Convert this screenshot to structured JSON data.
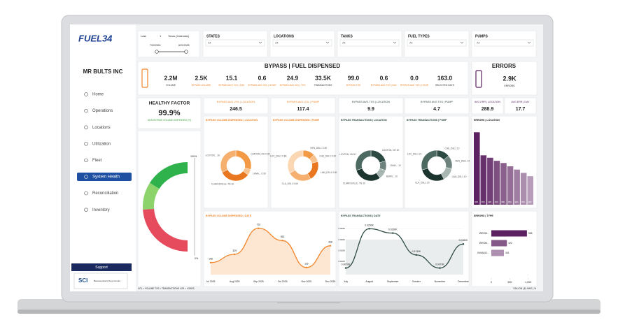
{
  "sidebar": {
    "logo": "FUEL34",
    "company": "MR BULTS INC",
    "nav": [
      "Home",
      "Operations",
      "Locations",
      "Utilization",
      "Fleet",
      "System Health",
      "Reconciliation",
      "Inventory"
    ],
    "active": 5,
    "support": "Support",
    "footer": "SCI",
    "footer_text": "Because Every Drop Counts"
  },
  "filters": {
    "period": {
      "label": "Last",
      "count": "1",
      "unit": "Years (Calendar)",
      "start": "7/22/2024",
      "end": "6/21/2025"
    },
    "dropdowns": [
      {
        "label": "STATES",
        "value": "All"
      },
      {
        "label": "LOCATIONS",
        "value": "All"
      },
      {
        "label": "TANKS",
        "value": "All"
      },
      {
        "label": "FUEL TYPES",
        "value": "All"
      },
      {
        "label": "PUMPS",
        "value": "All"
      }
    ]
  },
  "bypass": {
    "title": "BYPASS | FUEL DISPENSED",
    "kpis": [
      {
        "value": "2.2M",
        "label": "VOLUME"
      },
      {
        "value": "2.5K",
        "label": "BYPASS VOLUME"
      },
      {
        "value": "15.1",
        "label": "BYPASS AVG VOL | DAY"
      },
      {
        "value": "0.6",
        "label": "BYPASS AVG VOL | HOUR"
      },
      {
        "value": "24.9",
        "label": "BYPASS AVG VOL | TXS"
      },
      {
        "value": "33.5K",
        "label": "TRANSACTIONS"
      },
      {
        "value": "99.0",
        "label": "BYPASS TXS"
      },
      {
        "value": "0.6",
        "label": "BYPASS AVG TXS | DAY"
      },
      {
        "value": "0.0",
        "label": "BYPASS AVG TXS | HOUR"
      },
      {
        "value": "163.0",
        "label": "SELECTED DAYS"
      }
    ]
  },
  "errors": {
    "title": "ERRORS",
    "value": "2.9K",
    "label": "ERRORS",
    "stats": [
      {
        "label": "AVG ERR | LOCATION",
        "value": "288.9"
      },
      {
        "label": "AVG ERR | DAY",
        "value": "17.7"
      }
    ]
  },
  "health": {
    "title": "HEALTHY FACTOR",
    "value": "99.9%",
    "label": "NON BYPASS VOLUME DISPENSED (%)",
    "max_label": "100%",
    "min_label": "0%"
  },
  "stats": [
    {
      "label": "BYPASS AVG VOL | LOCATION",
      "value": "246.5"
    },
    {
      "label": "BYPASS AVG VOL | PUMP",
      "value": "117.4"
    },
    {
      "label": "BYPASS AVG TXS | LOCATION",
      "value": "9.9"
    },
    {
      "label": "BYPASS AVG TXS | PUMP",
      "value": "4.7"
    }
  ],
  "donuts": [
    {
      "title": "BYPASS VOLUME DISPENSED | LOCATION",
      "labels": [
        "CANTON, OH 0.9K",
        "LAMA... 0.2K",
        "CLARKSVILLE, TN 1K",
        "LOXTON... 1K"
      ],
      "values": [
        0.9,
        0.2,
        1,
        1
      ],
      "colors": [
        "#f29a45",
        "#f8c28f",
        "#e8771f",
        "#f5b070"
      ]
    },
    {
      "title": "BYPASS VOLUME DISPENSED | PUMP",
      "labels": [
        "HEN_DSL1 0.3K",
        "CHE_DSL1 0.2K",
        "LAM_DSL1 0.5K",
        "CLA_DSL1 0.6K",
        "LOX_DSL1 0.8K"
      ],
      "values": [
        0.3,
        0.2,
        0.5,
        0.6,
        0.8
      ],
      "colors": [
        "#f29a45",
        "#f8c28f",
        "#e8771f",
        "#f5b070",
        "#fbd7b3"
      ]
    },
    {
      "title": "BYPASS TRANSACTIONS | LOCATION",
      "labels": [
        "CANTON, OH 20",
        "LAMA... 10",
        "BURN... 10",
        "CLARKSVILLE, TN 30",
        "LOXTON, VA 30"
      ],
      "values": [
        20,
        10,
        10,
        30,
        30
      ],
      "colors": [
        "#2d4a43",
        "#6e837d",
        "#a9b7b2",
        "#1c342e",
        "#4d6a62"
      ]
    },
    {
      "title": "BYPASS TRANSACTIONS | PUMP",
      "labels": [
        "CHE_DSL1 10",
        "HEN_DSL1 10",
        "LAM_DSL1 10",
        "CLA_DSL1 20",
        "LOX_DSL1 21"
      ],
      "values": [
        10,
        10,
        10,
        20,
        21
      ],
      "colors": [
        "#2d4a43",
        "#6e837d",
        "#a9b7b2",
        "#1c342e",
        "#4d6a62"
      ]
    }
  ],
  "errors_location": {
    "title": "ERRORS | LOCATION",
    "values": [
      660,
      450,
      428,
      400,
      380,
      350,
      320,
      290,
      260
    ],
    "ylim": [
      0,
      700
    ],
    "color": "#5b2160"
  },
  "errors_type": {
    "title": "ERRORS | TYPE",
    "categories": [
      "WRON...",
      "WRON...",
      "INVALID..."
    ],
    "values": [
      965,
      422,
      341
    ],
    "xlim": [
      0,
      1100
    ],
    "xticks": [
      0,
      500,
      {
        "value": 1000,
        "label": "1,000"
      }
    ],
    "color": "#5b2160"
  },
  "volume_date": {
    "title": "BYPASS VOLUME DISPENSED | DATE",
    "x": [
      "Jul 2025",
      "Aug 2025",
      "Sep 2025",
      "Oct 2025",
      "Nov 2025",
      "Dec 2025"
    ],
    "values": [
      195,
      329,
      752,
      552,
      115,
      468
    ],
    "ylim": [
      0,
      850
    ],
    "color": "#f0852a"
  },
  "txs_date": {
    "title": "BYPASS TRANSACTIONS | DATE",
    "x": [
      "July",
      "August",
      "September",
      "October",
      "November",
      "December"
    ],
    "values": [
      0.007,
      0.025,
      0.023,
      0.013,
      0.007,
      0.018
    ],
    "value_labels": [
      "0.0070K",
      "0.0250K",
      "0.0230K",
      "0.0130K",
      "0.0070K",
      "0.0180K"
    ],
    "ylim": [
      0.004,
      0.028
    ],
    "yticks": [
      {
        "value": 0.01,
        "label": "0.010K"
      },
      {
        "value": 0.015,
        "label": "0.015K"
      },
      {
        "value": 0.02,
        "label": "0.020K"
      },
      {
        "value": 0.025,
        "label": "0.025K"
      }
    ],
    "color": "#2e4a44"
  },
  "footer": {
    "legend": "VOL = VOLUME  TXS = TRANSACTIONS  LOS = LOADS",
    "units": "GALLON | $ | MILE | %"
  }
}
